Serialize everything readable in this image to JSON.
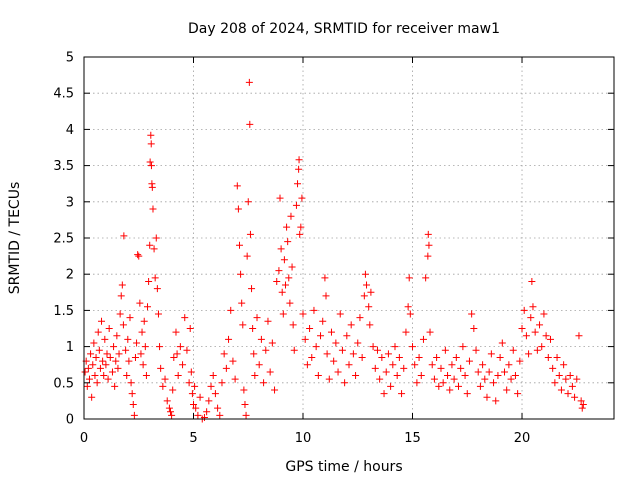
{
  "chart_data": {
    "type": "scatter",
    "title": "Day 208 of 2024, SRMTID for receiver maw1",
    "xlabel": "GPS time / hours",
    "ylabel": "SRMTID / TECUs",
    "xlim": [
      0,
      24.2
    ],
    "ylim": [
      0,
      5
    ],
    "xticks": [
      0,
      5,
      10,
      15,
      20
    ],
    "xtick_labels": [
      "0",
      "5",
      "10",
      "15",
      "20"
    ],
    "yticks": [
      0,
      0.5,
      1,
      1.5,
      2,
      2.5,
      3,
      3.5,
      4,
      4.5,
      5
    ],
    "ytick_labels": [
      "0",
      "0.5",
      "1",
      "1.5",
      "2",
      "2.5",
      "3",
      "3.5",
      "4",
      "4.5",
      "5"
    ],
    "grid": true,
    "marker": "+",
    "color": "#ff0000",
    "series": [
      {
        "name": "SRMTID",
        "points": [
          [
            0.05,
            0.65
          ],
          [
            0.1,
            0.8
          ],
          [
            0.15,
            0.45
          ],
          [
            0.2,
            0.7
          ],
          [
            0.25,
            0.55
          ],
          [
            0.3,
            0.9
          ],
          [
            0.35,
            0.3
          ],
          [
            0.4,
            0.75
          ],
          [
            0.45,
            1.05
          ],
          [
            0.5,
            0.6
          ],
          [
            0.55,
            0.85
          ],
          [
            0.6,
            0.5
          ],
          [
            0.65,
            1.2
          ],
          [
            0.7,
            0.95
          ],
          [
            0.75,
            0.7
          ],
          [
            0.8,
            1.35
          ],
          [
            0.85,
            0.8
          ],
          [
            0.9,
            0.6
          ],
          [
            0.95,
            1.1
          ],
          [
            1.0,
            0.75
          ],
          [
            1.05,
            0.9
          ],
          [
            1.1,
            0.55
          ],
          [
            1.15,
            1.25
          ],
          [
            1.2,
            0.85
          ],
          [
            1.3,
            0.65
          ],
          [
            1.35,
            1.0
          ],
          [
            1.4,
            0.45
          ],
          [
            1.45,
            0.8
          ],
          [
            1.5,
            1.15
          ],
          [
            1.55,
            0.7
          ],
          [
            1.6,
            0.9
          ],
          [
            1.65,
            1.45
          ],
          [
            1.7,
            1.7
          ],
          [
            1.75,
            1.85
          ],
          [
            1.8,
            1.3
          ],
          [
            1.82,
            2.53
          ],
          [
            1.9,
            0.95
          ],
          [
            1.95,
            0.6
          ],
          [
            2.0,
            1.1
          ],
          [
            2.05,
            0.8
          ],
          [
            2.1,
            1.4
          ],
          [
            2.15,
            0.5
          ],
          [
            2.2,
            0.35
          ],
          [
            2.25,
            0.2
          ],
          [
            2.3,
            0.05
          ],
          [
            2.35,
            0.85
          ],
          [
            2.4,
            1.05
          ],
          [
            2.45,
            2.27
          ],
          [
            2.5,
            2.25
          ],
          [
            2.55,
            1.6
          ],
          [
            2.6,
            0.9
          ],
          [
            2.65,
            1.2
          ],
          [
            2.7,
            0.75
          ],
          [
            2.75,
            1.35
          ],
          [
            2.8,
            1.0
          ],
          [
            2.85,
            0.6
          ],
          [
            2.9,
            1.55
          ],
          [
            2.95,
            1.9
          ],
          [
            3.0,
            2.4
          ],
          [
            3.02,
            3.55
          ],
          [
            3.05,
            3.92
          ],
          [
            3.07,
            3.8
          ],
          [
            3.08,
            3.5
          ],
          [
            3.1,
            3.25
          ],
          [
            3.12,
            3.2
          ],
          [
            3.15,
            2.9
          ],
          [
            3.2,
            2.35
          ],
          [
            3.25,
            1.95
          ],
          [
            3.3,
            2.5
          ],
          [
            3.35,
            1.8
          ],
          [
            3.4,
            1.45
          ],
          [
            3.45,
            1.0
          ],
          [
            3.5,
            0.7
          ],
          [
            3.6,
            0.45
          ],
          [
            3.7,
            0.55
          ],
          [
            3.8,
            0.25
          ],
          [
            3.9,
            0.15
          ],
          [
            3.95,
            0.1
          ],
          [
            4.0,
            0.05
          ],
          [
            4.05,
            0.4
          ],
          [
            4.1,
            0.85
          ],
          [
            4.2,
            1.2
          ],
          [
            4.25,
            0.9
          ],
          [
            4.3,
            0.6
          ],
          [
            4.4,
            1.0
          ],
          [
            4.5,
            0.75
          ],
          [
            4.6,
            1.4
          ],
          [
            4.7,
            0.95
          ],
          [
            4.8,
            0.5
          ],
          [
            4.85,
            1.25
          ],
          [
            4.9,
            0.65
          ],
          [
            4.95,
            0.35
          ],
          [
            5.0,
            0.2
          ],
          [
            5.05,
            0.45
          ],
          [
            5.1,
            0.15
          ],
          [
            5.2,
            0.05
          ],
          [
            5.3,
            0.3
          ],
          [
            5.4,
            0.0
          ],
          [
            5.5,
            0.02
          ],
          [
            5.6,
            0.1
          ],
          [
            5.7,
            0.25
          ],
          [
            5.8,
            0.45
          ],
          [
            5.9,
            0.6
          ],
          [
            6.0,
            0.35
          ],
          [
            6.1,
            0.15
          ],
          [
            6.2,
            0.05
          ],
          [
            6.3,
            0.5
          ],
          [
            6.4,
            0.9
          ],
          [
            6.5,
            0.7
          ],
          [
            6.6,
            1.1
          ],
          [
            6.7,
            1.5
          ],
          [
            6.8,
            0.8
          ],
          [
            6.9,
            0.55
          ],
          [
            7.0,
            3.22
          ],
          [
            7.05,
            2.9
          ],
          [
            7.1,
            2.4
          ],
          [
            7.15,
            2.0
          ],
          [
            7.2,
            1.6
          ],
          [
            7.25,
            1.3
          ],
          [
            7.3,
            0.4
          ],
          [
            7.35,
            0.2
          ],
          [
            7.4,
            0.05
          ],
          [
            7.45,
            2.25
          ],
          [
            7.5,
            3.0
          ],
          [
            7.55,
            4.65
          ],
          [
            7.57,
            4.07
          ],
          [
            7.6,
            2.55
          ],
          [
            7.65,
            1.8
          ],
          [
            7.7,
            1.25
          ],
          [
            7.75,
            0.9
          ],
          [
            7.8,
            0.6
          ],
          [
            7.9,
            1.4
          ],
          [
            8.0,
            0.75
          ],
          [
            8.1,
            1.1
          ],
          [
            8.2,
            0.5
          ],
          [
            8.3,
            0.95
          ],
          [
            8.4,
            1.35
          ],
          [
            8.5,
            0.65
          ],
          [
            8.6,
            1.05
          ],
          [
            8.7,
            0.4
          ],
          [
            8.8,
            1.9
          ],
          [
            8.9,
            2.05
          ],
          [
            8.95,
            3.05
          ],
          [
            9.0,
            2.35
          ],
          [
            9.05,
            1.75
          ],
          [
            9.1,
            1.45
          ],
          [
            9.15,
            2.2
          ],
          [
            9.2,
            1.85
          ],
          [
            9.25,
            2.65
          ],
          [
            9.3,
            2.45
          ],
          [
            9.35,
            1.95
          ],
          [
            9.4,
            1.6
          ],
          [
            9.45,
            2.8
          ],
          [
            9.5,
            2.1
          ],
          [
            9.55,
            1.3
          ],
          [
            9.6,
            0.95
          ],
          [
            9.7,
            2.95
          ],
          [
            9.75,
            3.25
          ],
          [
            9.8,
            3.45
          ],
          [
            9.82,
            3.58
          ],
          [
            9.85,
            2.55
          ],
          [
            9.9,
            2.65
          ],
          [
            9.95,
            3.05
          ],
          [
            10.0,
            1.45
          ],
          [
            10.1,
            1.1
          ],
          [
            10.2,
            0.75
          ],
          [
            10.3,
            1.25
          ],
          [
            10.4,
            0.85
          ],
          [
            10.5,
            1.5
          ],
          [
            10.6,
            1.0
          ],
          [
            10.7,
            0.6
          ],
          [
            10.8,
            1.15
          ],
          [
            10.9,
            1.35
          ],
          [
            11.0,
            1.95
          ],
          [
            11.05,
            1.7
          ],
          [
            11.1,
            0.9
          ],
          [
            11.2,
            0.55
          ],
          [
            11.3,
            1.2
          ],
          [
            11.4,
            0.8
          ],
          [
            11.5,
            1.05
          ],
          [
            11.6,
            0.65
          ],
          [
            11.7,
            1.45
          ],
          [
            11.8,
            0.95
          ],
          [
            11.9,
            0.5
          ],
          [
            12.0,
            1.15
          ],
          [
            12.1,
            0.75
          ],
          [
            12.2,
            1.3
          ],
          [
            12.3,
            0.9
          ],
          [
            12.4,
            0.6
          ],
          [
            12.5,
            1.05
          ],
          [
            12.6,
            1.4
          ],
          [
            12.7,
            0.85
          ],
          [
            12.8,
            1.7
          ],
          [
            12.85,
            2.0
          ],
          [
            12.9,
            1.85
          ],
          [
            13.0,
            1.55
          ],
          [
            13.05,
            1.3
          ],
          [
            13.1,
            1.75
          ],
          [
            13.2,
            1.0
          ],
          [
            13.3,
            0.7
          ],
          [
            13.4,
            0.95
          ],
          [
            13.5,
            0.55
          ],
          [
            13.6,
            0.85
          ],
          [
            13.7,
            0.35
          ],
          [
            13.8,
            0.65
          ],
          [
            13.9,
            0.9
          ],
          [
            14.0,
            0.45
          ],
          [
            14.1,
            0.75
          ],
          [
            14.2,
            1.0
          ],
          [
            14.3,
            0.6
          ],
          [
            14.4,
            0.85
          ],
          [
            14.5,
            0.35
          ],
          [
            14.6,
            0.7
          ],
          [
            14.7,
            1.2
          ],
          [
            14.8,
            1.55
          ],
          [
            14.85,
            1.95
          ],
          [
            14.9,
            1.45
          ],
          [
            15.0,
            1.0
          ],
          [
            15.1,
            0.75
          ],
          [
            15.2,
            0.5
          ],
          [
            15.3,
            0.85
          ],
          [
            15.4,
            0.6
          ],
          [
            15.5,
            1.1
          ],
          [
            15.6,
            1.95
          ],
          [
            15.7,
            2.25
          ],
          [
            15.72,
            2.55
          ],
          [
            15.75,
            2.4
          ],
          [
            15.8,
            1.2
          ],
          [
            15.9,
            0.75
          ],
          [
            16.0,
            0.55
          ],
          [
            16.1,
            0.85
          ],
          [
            16.2,
            0.45
          ],
          [
            16.3,
            0.7
          ],
          [
            16.4,
            0.5
          ],
          [
            16.5,
            0.95
          ],
          [
            16.6,
            0.6
          ],
          [
            16.7,
            0.4
          ],
          [
            16.8,
            0.75
          ],
          [
            16.9,
            0.55
          ],
          [
            17.0,
            0.85
          ],
          [
            17.1,
            0.45
          ],
          [
            17.2,
            0.7
          ],
          [
            17.3,
            1.0
          ],
          [
            17.4,
            0.6
          ],
          [
            17.5,
            0.35
          ],
          [
            17.6,
            0.8
          ],
          [
            17.7,
            1.45
          ],
          [
            17.8,
            1.25
          ],
          [
            17.9,
            0.95
          ],
          [
            18.0,
            0.65
          ],
          [
            18.1,
            0.45
          ],
          [
            18.2,
            0.75
          ],
          [
            18.3,
            0.55
          ],
          [
            18.4,
            0.3
          ],
          [
            18.5,
            0.65
          ],
          [
            18.6,
            0.9
          ],
          [
            18.7,
            0.5
          ],
          [
            18.8,
            0.25
          ],
          [
            18.9,
            0.6
          ],
          [
            19.0,
            0.85
          ],
          [
            19.1,
            1.05
          ],
          [
            19.2,
            0.65
          ],
          [
            19.3,
            0.4
          ],
          [
            19.4,
            0.75
          ],
          [
            19.5,
            0.55
          ],
          [
            19.6,
            0.95
          ],
          [
            19.7,
            0.6
          ],
          [
            19.8,
            0.35
          ],
          [
            19.9,
            0.8
          ],
          [
            20.0,
            1.25
          ],
          [
            20.1,
            1.5
          ],
          [
            20.2,
            1.15
          ],
          [
            20.3,
            0.9
          ],
          [
            20.4,
            1.4
          ],
          [
            20.45,
            1.9
          ],
          [
            20.5,
            1.55
          ],
          [
            20.6,
            1.2
          ],
          [
            20.7,
            0.95
          ],
          [
            20.8,
            1.3
          ],
          [
            20.9,
            1.0
          ],
          [
            21.0,
            1.45
          ],
          [
            21.1,
            1.15
          ],
          [
            21.2,
            0.85
          ],
          [
            21.3,
            1.1
          ],
          [
            21.4,
            0.7
          ],
          [
            21.5,
            0.5
          ],
          [
            21.6,
            0.85
          ],
          [
            21.7,
            0.6
          ],
          [
            21.8,
            0.4
          ],
          [
            21.9,
            0.75
          ],
          [
            22.0,
            0.55
          ],
          [
            22.1,
            0.35
          ],
          [
            22.2,
            0.6
          ],
          [
            22.3,
            0.45
          ],
          [
            22.4,
            0.3
          ],
          [
            22.5,
            0.55
          ],
          [
            22.6,
            1.15
          ],
          [
            22.7,
            0.25
          ],
          [
            22.75,
            0.15
          ],
          [
            22.8,
            0.2
          ]
        ]
      }
    ]
  }
}
